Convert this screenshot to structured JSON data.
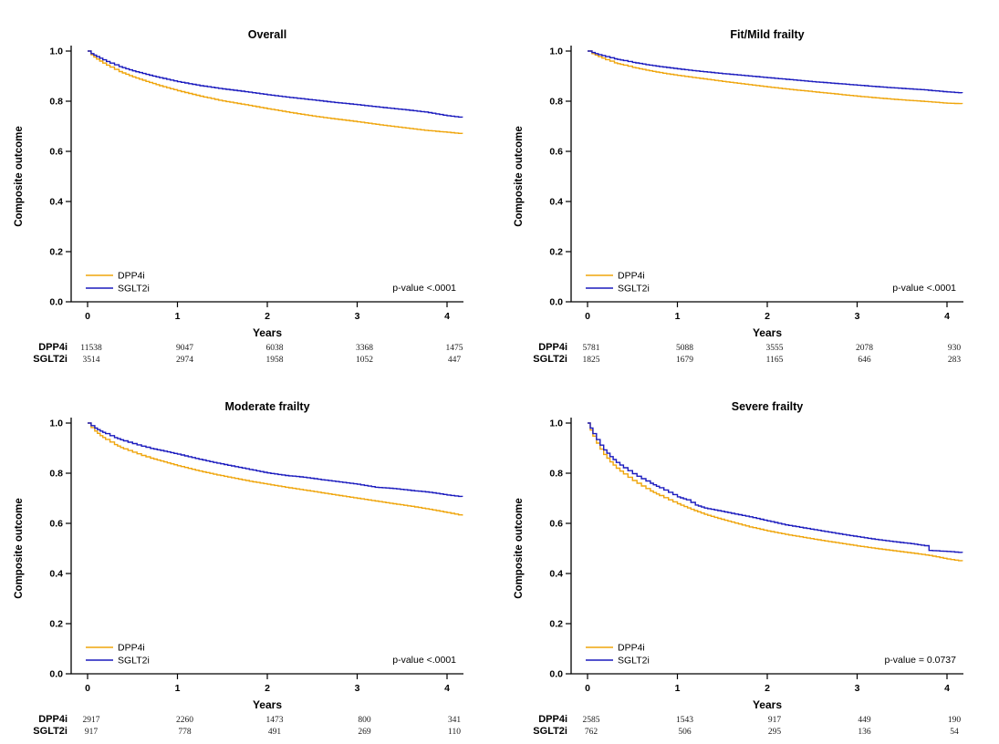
{
  "figure": {
    "background": "#ffffff",
    "layout": "2x2-grid-of-kaplan-meier-panels"
  },
  "colors": {
    "dpp4i": "#EFA50C",
    "sglt2i": "#1A1ABE",
    "axis": "#000000"
  },
  "chart_data": [
    {
      "type": "line",
      "kind": "kaplan-meier-step",
      "title": "Overall",
      "xlabel": "Years",
      "ylabel": "Composite outcome",
      "xlim": [
        0,
        4.2
      ],
      "ylim": [
        0.0,
        1.0
      ],
      "xticks": [
        "0",
        "1",
        "2",
        "3",
        "4"
      ],
      "yticks": [
        "0.0",
        "0.2",
        "0.4",
        "0.6",
        "0.8",
        "1.0"
      ],
      "legend_position": "bottom-left",
      "annotation": "p-value <.0001",
      "series": [
        {
          "name": "DPP4i",
          "color_key": "dpp4i",
          "points": [
            [
              0,
              1.0
            ],
            [
              0.04,
              0.985
            ],
            [
              0.1,
              0.968
            ],
            [
              0.17,
              0.952
            ],
            [
              0.25,
              0.936
            ],
            [
              0.35,
              0.918
            ],
            [
              0.5,
              0.897
            ],
            [
              0.65,
              0.879
            ],
            [
              0.8,
              0.862
            ],
            [
              1.0,
              0.842
            ],
            [
              1.25,
              0.82
            ],
            [
              1.5,
              0.801
            ],
            [
              1.75,
              0.786
            ],
            [
              2.0,
              0.77
            ],
            [
              2.25,
              0.755
            ],
            [
              2.5,
              0.741
            ],
            [
              2.75,
              0.729
            ],
            [
              3.0,
              0.718
            ],
            [
              3.25,
              0.706
            ],
            [
              3.5,
              0.695
            ],
            [
              3.75,
              0.684
            ],
            [
              4.0,
              0.676
            ],
            [
              4.17,
              0.67
            ]
          ]
        },
        {
          "name": "SGLT2i",
          "color_key": "sglt2i",
          "points": [
            [
              0,
              1.0
            ],
            [
              0.04,
              0.99
            ],
            [
              0.1,
              0.978
            ],
            [
              0.17,
              0.965
            ],
            [
              0.25,
              0.952
            ],
            [
              0.35,
              0.938
            ],
            [
              0.5,
              0.921
            ],
            [
              0.65,
              0.907
            ],
            [
              0.8,
              0.894
            ],
            [
              1.0,
              0.878
            ],
            [
              1.25,
              0.862
            ],
            [
              1.5,
              0.849
            ],
            [
              1.75,
              0.838
            ],
            [
              2.0,
              0.826
            ],
            [
              2.25,
              0.815
            ],
            [
              2.5,
              0.805
            ],
            [
              2.75,
              0.795
            ],
            [
              3.0,
              0.786
            ],
            [
              3.25,
              0.776
            ],
            [
              3.5,
              0.767
            ],
            [
              3.75,
              0.757
            ],
            [
              4.0,
              0.742
            ],
            [
              4.17,
              0.735
            ]
          ]
        }
      ],
      "at_risk": {
        "rows": [
          {
            "label": "DPP4i",
            "counts": [
              "11538",
              "9047",
              "6038",
              "3368",
              "1475"
            ]
          },
          {
            "label": "SGLT2i",
            "counts": [
              "3514",
              "2974",
              "1958",
              "1052",
              "447"
            ]
          }
        ]
      }
    },
    {
      "type": "line",
      "kind": "kaplan-meier-step",
      "title": "Fit/Mild frailty",
      "xlabel": "Years",
      "ylabel": "Composite outcome",
      "xlim": [
        0,
        4.2
      ],
      "ylim": [
        0.0,
        1.0
      ],
      "xticks": [
        "0",
        "1",
        "2",
        "3",
        "4"
      ],
      "yticks": [
        "0.0",
        "0.2",
        "0.4",
        "0.6",
        "0.8",
        "1.0"
      ],
      "legend_position": "bottom-left",
      "annotation": "p-value <.0001",
      "series": [
        {
          "name": "DPP4i",
          "color_key": "dpp4i",
          "points": [
            [
              0,
              1.0
            ],
            [
              0.05,
              0.99
            ],
            [
              0.12,
              0.978
            ],
            [
              0.2,
              0.966
            ],
            [
              0.3,
              0.953
            ],
            [
              0.4,
              0.944
            ],
            [
              0.5,
              0.935
            ],
            [
              0.65,
              0.924
            ],
            [
              0.8,
              0.914
            ],
            [
              1.0,
              0.903
            ],
            [
              1.25,
              0.891
            ],
            [
              1.5,
              0.879
            ],
            [
              1.75,
              0.868
            ],
            [
              2.0,
              0.857
            ],
            [
              2.25,
              0.847
            ],
            [
              2.5,
              0.838
            ],
            [
              2.75,
              0.829
            ],
            [
              3.0,
              0.82
            ],
            [
              3.25,
              0.812
            ],
            [
              3.5,
              0.805
            ],
            [
              3.75,
              0.799
            ],
            [
              4.0,
              0.792
            ],
            [
              4.17,
              0.79
            ]
          ]
        },
        {
          "name": "SGLT2i",
          "color_key": "sglt2i",
          "points": [
            [
              0,
              1.0
            ],
            [
              0.05,
              0.994
            ],
            [
              0.12,
              0.986
            ],
            [
              0.2,
              0.978
            ],
            [
              0.3,
              0.969
            ],
            [
              0.4,
              0.962
            ],
            [
              0.5,
              0.955
            ],
            [
              0.65,
              0.946
            ],
            [
              0.8,
              0.938
            ],
            [
              1.0,
              0.929
            ],
            [
              1.25,
              0.919
            ],
            [
              1.5,
              0.91
            ],
            [
              1.75,
              0.902
            ],
            [
              2.0,
              0.894
            ],
            [
              2.25,
              0.886
            ],
            [
              2.5,
              0.878
            ],
            [
              2.75,
              0.871
            ],
            [
              3.0,
              0.864
            ],
            [
              3.25,
              0.857
            ],
            [
              3.5,
              0.851
            ],
            [
              3.75,
              0.845
            ],
            [
              4.0,
              0.837
            ],
            [
              4.17,
              0.833
            ]
          ]
        }
      ],
      "at_risk": {
        "rows": [
          {
            "label": "DPP4i",
            "counts": [
              "5781",
              "5088",
              "3555",
              "2078",
              "930"
            ]
          },
          {
            "label": "SGLT2i",
            "counts": [
              "1825",
              "1679",
              "1165",
              "646",
              "283"
            ]
          }
        ]
      }
    },
    {
      "type": "line",
      "kind": "kaplan-meier-step",
      "title": "Moderate frailty",
      "xlabel": "Years",
      "ylabel": "Composite outcome",
      "xlim": [
        0,
        4.2
      ],
      "ylim": [
        0.0,
        1.0
      ],
      "xticks": [
        "0",
        "1",
        "2",
        "3",
        "4"
      ],
      "yticks": [
        "0.0",
        "0.2",
        "0.4",
        "0.6",
        "0.8",
        "1.0"
      ],
      "legend_position": "bottom-left",
      "annotation": "p-value <.0001",
      "series": [
        {
          "name": "DPP4i",
          "color_key": "dpp4i",
          "points": [
            [
              0,
              1.0
            ],
            [
              0.04,
              0.982
            ],
            [
              0.08,
              0.968
            ],
            [
              0.14,
              0.95
            ],
            [
              0.2,
              0.935
            ],
            [
              0.3,
              0.914
            ],
            [
              0.4,
              0.897
            ],
            [
              0.5,
              0.884
            ],
            [
              0.6,
              0.871
            ],
            [
              0.7,
              0.86
            ],
            [
              0.85,
              0.845
            ],
            [
              1.0,
              0.83
            ],
            [
              1.2,
              0.812
            ],
            [
              1.4,
              0.796
            ],
            [
              1.6,
              0.782
            ],
            [
              1.8,
              0.768
            ],
            [
              2.0,
              0.756
            ],
            [
              2.2,
              0.744
            ],
            [
              2.4,
              0.733
            ],
            [
              2.6,
              0.722
            ],
            [
              2.8,
              0.711
            ],
            [
              3.0,
              0.7
            ],
            [
              3.2,
              0.689
            ],
            [
              3.4,
              0.678
            ],
            [
              3.6,
              0.668
            ],
            [
              3.8,
              0.656
            ],
            [
              4.0,
              0.643
            ],
            [
              4.17,
              0.631
            ]
          ]
        },
        {
          "name": "SGLT2i",
          "color_key": "sglt2i",
          "points": [
            [
              0,
              1.0
            ],
            [
              0.04,
              0.99
            ],
            [
              0.08,
              0.98
            ],
            [
              0.14,
              0.968
            ],
            [
              0.2,
              0.958
            ],
            [
              0.3,
              0.942
            ],
            [
              0.4,
              0.929
            ],
            [
              0.5,
              0.918
            ],
            [
              0.6,
              0.908
            ],
            [
              0.7,
              0.899
            ],
            [
              0.85,
              0.888
            ],
            [
              1.0,
              0.876
            ],
            [
              1.2,
              0.859
            ],
            [
              1.4,
              0.843
            ],
            [
              1.6,
              0.829
            ],
            [
              1.8,
              0.815
            ],
            [
              2.0,
              0.801
            ],
            [
              2.2,
              0.791
            ],
            [
              2.4,
              0.784
            ],
            [
              2.6,
              0.774
            ],
            [
              2.8,
              0.765
            ],
            [
              3.0,
              0.756
            ],
            [
              3.2,
              0.744
            ],
            [
              3.4,
              0.739
            ],
            [
              3.6,
              0.731
            ],
            [
              3.8,
              0.724
            ],
            [
              4.0,
              0.713
            ],
            [
              4.17,
              0.706
            ]
          ]
        }
      ],
      "at_risk": {
        "rows": [
          {
            "label": "DPP4i",
            "counts": [
              "2917",
              "2260",
              "1473",
              "800",
              "341"
            ]
          },
          {
            "label": "SGLT2i",
            "counts": [
              "917",
              "778",
              "491",
              "269",
              "110"
            ]
          }
        ]
      }
    },
    {
      "type": "line",
      "kind": "kaplan-meier-step",
      "title": "Severe frailty",
      "xlabel": "Years",
      "ylabel": "Composite outcome",
      "xlim": [
        0,
        4.2
      ],
      "ylim": [
        0.0,
        1.0
      ],
      "xticks": [
        "0",
        "1",
        "2",
        "3",
        "4"
      ],
      "yticks": [
        "0.0",
        "0.2",
        "0.4",
        "0.6",
        "0.8",
        "1.0"
      ],
      "legend_position": "bottom-left",
      "annotation": "p-value = 0.0737",
      "series": [
        {
          "name": "DPP4i",
          "color_key": "dpp4i",
          "points": [
            [
              0,
              1.0
            ],
            [
              0.03,
              0.972
            ],
            [
              0.06,
              0.948
            ],
            [
              0.1,
              0.92
            ],
            [
              0.14,
              0.896
            ],
            [
              0.18,
              0.875
            ],
            [
              0.25,
              0.845
            ],
            [
              0.32,
              0.82
            ],
            [
              0.4,
              0.797
            ],
            [
              0.5,
              0.771
            ],
            [
              0.6,
              0.749
            ],
            [
              0.7,
              0.729
            ],
            [
              0.8,
              0.711
            ],
            [
              0.9,
              0.694
            ],
            [
              1.0,
              0.678
            ],
            [
              1.15,
              0.656
            ],
            [
              1.3,
              0.636
            ],
            [
              1.45,
              0.62
            ],
            [
              1.6,
              0.605
            ],
            [
              1.8,
              0.586
            ],
            [
              2.0,
              0.57
            ],
            [
              2.2,
              0.556
            ],
            [
              2.4,
              0.544
            ],
            [
              2.6,
              0.532
            ],
            [
              2.8,
              0.521
            ],
            [
              3.0,
              0.51
            ],
            [
              3.2,
              0.5
            ],
            [
              3.4,
              0.491
            ],
            [
              3.6,
              0.482
            ],
            [
              3.8,
              0.472
            ],
            [
              4.0,
              0.458
            ],
            [
              4.17,
              0.449
            ]
          ]
        },
        {
          "name": "SGLT2i",
          "color_key": "sglt2i",
          "points": [
            [
              0,
              1.0
            ],
            [
              0.03,
              0.98
            ],
            [
              0.06,
              0.958
            ],
            [
              0.1,
              0.934
            ],
            [
              0.14,
              0.912
            ],
            [
              0.18,
              0.893
            ],
            [
              0.25,
              0.866
            ],
            [
              0.32,
              0.843
            ],
            [
              0.4,
              0.822
            ],
            [
              0.5,
              0.798
            ],
            [
              0.6,
              0.778
            ],
            [
              0.7,
              0.76
            ],
            [
              0.8,
              0.742
            ],
            [
              0.9,
              0.724
            ],
            [
              1.0,
              0.706
            ],
            [
              1.1,
              0.694
            ],
            [
              1.2,
              0.673
            ],
            [
              1.3,
              0.661
            ],
            [
              1.45,
              0.651
            ],
            [
              1.6,
              0.64
            ],
            [
              1.8,
              0.626
            ],
            [
              2.0,
              0.61
            ],
            [
              2.2,
              0.594
            ],
            [
              2.4,
              0.582
            ],
            [
              2.6,
              0.57
            ],
            [
              2.8,
              0.558
            ],
            [
              3.0,
              0.547
            ],
            [
              3.2,
              0.536
            ],
            [
              3.4,
              0.527
            ],
            [
              3.6,
              0.519
            ],
            [
              3.75,
              0.511
            ],
            [
              3.8,
              0.492
            ],
            [
              4.0,
              0.488
            ],
            [
              4.17,
              0.483
            ]
          ]
        }
      ],
      "at_risk": {
        "rows": [
          {
            "label": "DPP4i",
            "counts": [
              "2585",
              "1543",
              "917",
              "449",
              "190"
            ]
          },
          {
            "label": "SGLT2i",
            "counts": [
              "762",
              "506",
              "295",
              "136",
              "54"
            ]
          }
        ]
      }
    }
  ]
}
